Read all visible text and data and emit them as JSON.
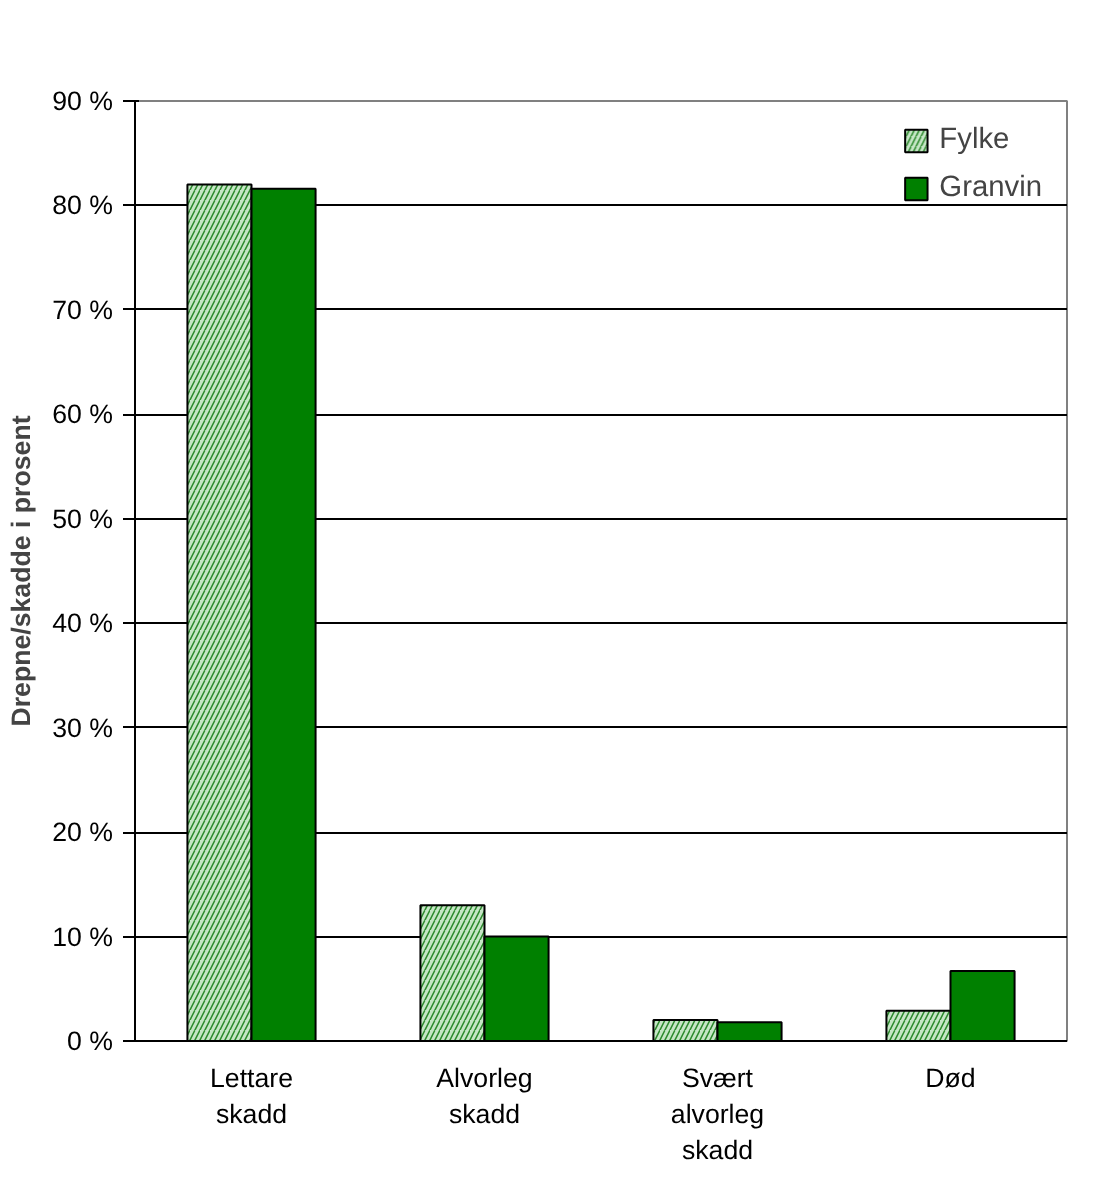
{
  "chart_data": {
    "type": "bar",
    "ylabel": "Drepne/skadde i prosent",
    "categories": [
      "Lettare\nskadd",
      "Alvorleg\nskadd",
      "Svært\nalvorleg\nskadd",
      "Død"
    ],
    "series": [
      {
        "name": "Fylke",
        "color": "#c6e6c6",
        "values": [
          82,
          13,
          2,
          2.9
        ]
      },
      {
        "name": "Granvin",
        "color": "#008000",
        "values": [
          81.6,
          10,
          1.8,
          6.7
        ]
      }
    ],
    "ylim": [
      0,
      90
    ],
    "yticks": [
      {
        "value": 0,
        "label": "0 %"
      },
      {
        "value": 10,
        "label": "10 %"
      },
      {
        "value": 20,
        "label": "20 %"
      },
      {
        "value": 30,
        "label": "30 %"
      },
      {
        "value": 40,
        "label": "40 %"
      },
      {
        "value": 50,
        "label": "50 %"
      },
      {
        "value": 60,
        "label": "60 %"
      },
      {
        "value": 70,
        "label": "70 %"
      },
      {
        "value": 80,
        "label": "80 %"
      },
      {
        "value": 90,
        "label": "90 %"
      }
    ],
    "grid": "y",
    "legend": "top right"
  }
}
